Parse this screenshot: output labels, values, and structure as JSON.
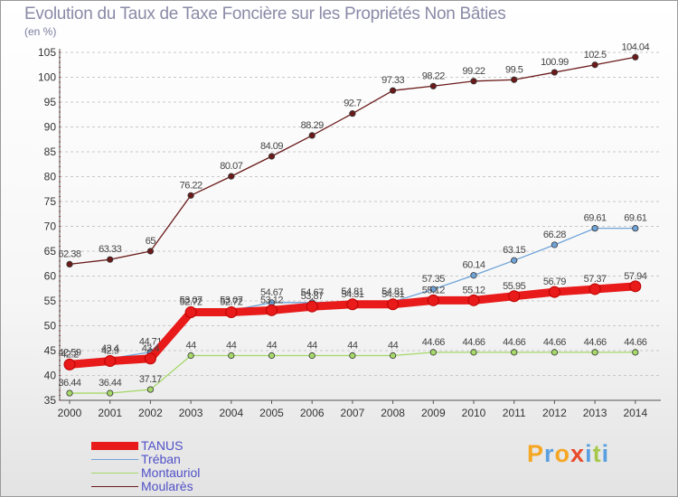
{
  "chart_data": {
    "type": "line",
    "title": "Evolution du Taux de Taxe Foncière sur les Propriétés Non Bâties",
    "unit_label": "(en %)",
    "xlabel": "",
    "ylabel": "",
    "categories": [
      "2000",
      "2001",
      "2002",
      "2003",
      "2004",
      "2005",
      "2006",
      "2007",
      "2008",
      "2009",
      "2010",
      "2011",
      "2012",
      "2013",
      "2014"
    ],
    "ylim": [
      35,
      105
    ],
    "yticks": [
      35,
      40,
      45,
      50,
      55,
      60,
      65,
      70,
      75,
      80,
      85,
      90,
      95,
      100,
      105
    ],
    "grid": "horizontal dashed",
    "legend_position": "bottom-left",
    "series": [
      {
        "name": "Moularès",
        "color": "#6b1a1a",
        "values": [
          62.38,
          63.33,
          65,
          76.22,
          80.07,
          84.09,
          88.29,
          92.7,
          97.33,
          98.22,
          99.22,
          99.5,
          100.99,
          102.5,
          104.04
        ],
        "labels": [
          "62.38",
          "63.33",
          "65",
          "76.22",
          "80.07",
          "84.09",
          "88.29",
          "92.7",
          "97.33",
          "98.22",
          "99.22",
          "99.5",
          "100.99",
          "102.5",
          "104.04"
        ]
      },
      {
        "name": "Tréban",
        "color": "#6fa3d8",
        "values": [
          42.59,
          43.4,
          44.71,
          53.07,
          53.07,
          54.67,
          54.67,
          54.81,
          54.81,
          57.35,
          60.14,
          63.15,
          66.28,
          69.61,
          69.61
        ],
        "labels": [
          "42.59",
          "43.4",
          "44.71",
          "53.07",
          "53.07",
          "54.67",
          "54.67",
          "54.81",
          "54.81",
          "57.35",
          "60.14",
          "63.15",
          "66.28",
          "69.61",
          "69.61"
        ]
      },
      {
        "name": "Montauriol",
        "color": "#a6d86a",
        "values": [
          36.44,
          36.44,
          37.17,
          44,
          44,
          44,
          44,
          44,
          44,
          44.66,
          44.66,
          44.66,
          44.66,
          44.66,
          44.66
        ],
        "labels": [
          "36.44",
          "36.44",
          "37.17",
          "44",
          "44",
          "44",
          "44",
          "44",
          "44",
          "44.66",
          "44.66",
          "44.66",
          "44.66",
          "44.66",
          "44.66"
        ]
      },
      {
        "name": "TANUS",
        "color": "#e81a1a",
        "values": [
          42.2,
          42.9,
          43.4,
          52.72,
          52.72,
          53.12,
          53.87,
          54.31,
          54.31,
          55.12,
          55.12,
          55.95,
          56.79,
          57.37,
          57.94
        ],
        "labels": [
          "42.2",
          "42.9",
          "43.4",
          "52.72",
          "52.72",
          "53.12",
          "53.87",
          "54.31",
          "54.31",
          "55.12",
          "55.12",
          "55.95",
          "56.79",
          "57.37",
          "57.94"
        ]
      }
    ]
  },
  "legend": [
    {
      "name": "TANUS",
      "color": "#e81a1a",
      "thick": true
    },
    {
      "name": "Tréban",
      "color": "#6fa3d8",
      "thick": false
    },
    {
      "name": "Montauriol",
      "color": "#a6d86a",
      "thick": false
    },
    {
      "name": "Moularès",
      "color": "#6b1a1a",
      "thick": false
    }
  ],
  "logo": {
    "letters": [
      "P",
      "r",
      "o",
      "x",
      "i",
      "t",
      "i"
    ],
    "colors": [
      "#f5a623",
      "#5aa0e0",
      "#f5a623",
      "#e84b2b",
      "#5aa0e0",
      "#a6c84a",
      "#5aa0e0"
    ]
  }
}
